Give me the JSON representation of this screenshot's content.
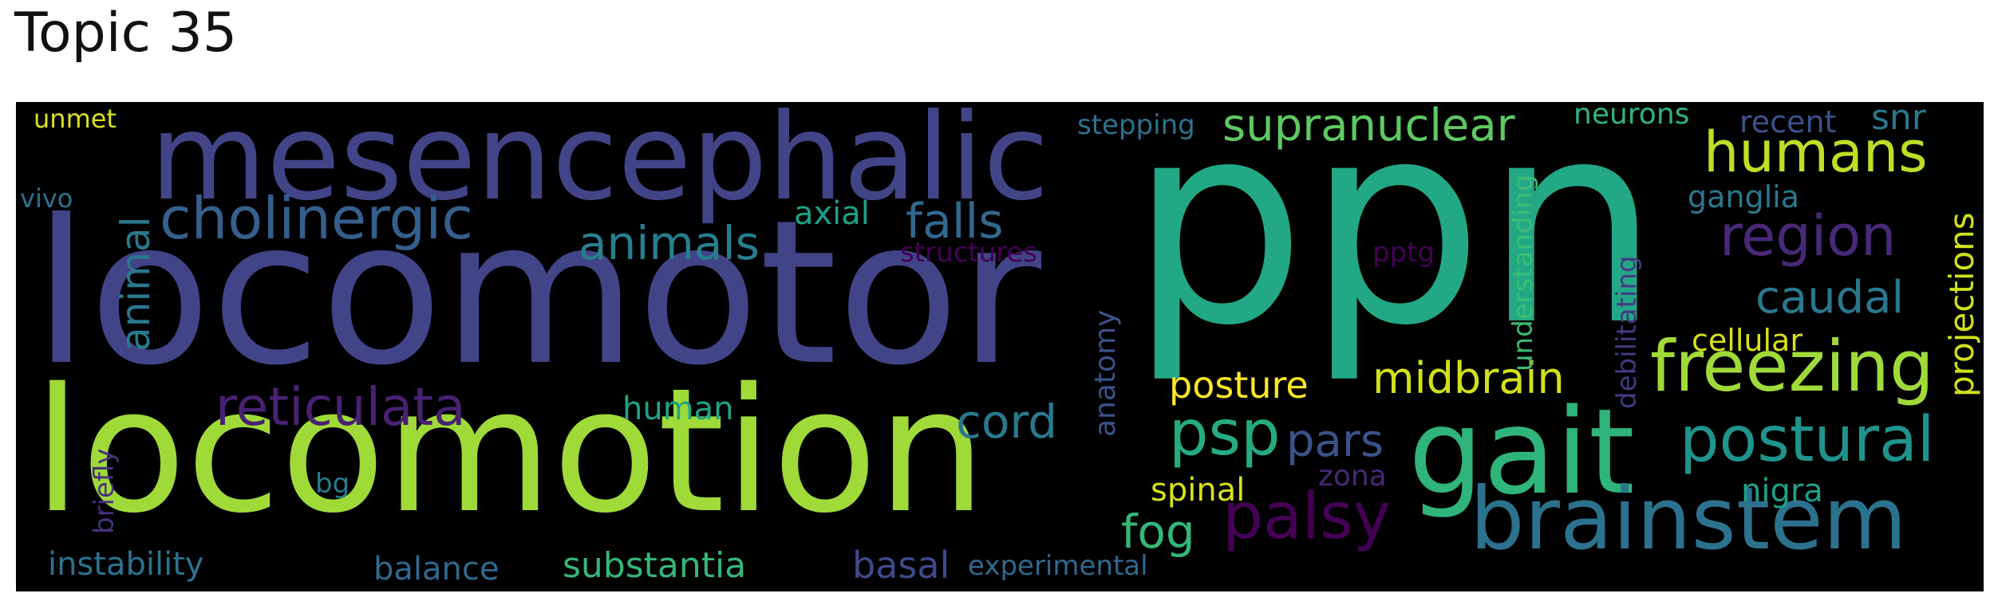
{
  "title": "Topic 35",
  "words": [
    {
      "text": "ppn",
      "color": "#22a884"
    },
    {
      "text": "locomotor",
      "color": "#414487"
    },
    {
      "text": "locomotion",
      "color": "#a0da39"
    },
    {
      "text": "mesencephalic",
      "color": "#414487"
    },
    {
      "text": "gait",
      "color": "#2fb47c"
    },
    {
      "text": "brainstem",
      "color": "#2c728e"
    },
    {
      "text": "freezing",
      "color": "#a0da39"
    },
    {
      "text": "postural",
      "color": "#1f948c"
    },
    {
      "text": "cholinergic",
      "color": "#355f8d"
    },
    {
      "text": "humans",
      "color": "#bddf26"
    },
    {
      "text": "supranuclear",
      "color": "#5ec962"
    },
    {
      "text": "region",
      "color": "#482878"
    },
    {
      "text": "reticulata",
      "color": "#482173"
    },
    {
      "text": "palsy",
      "color": "#440154"
    },
    {
      "text": "psp",
      "color": "#25ab82"
    },
    {
      "text": "midbrain",
      "color": "#d0e11c"
    },
    {
      "text": "animals",
      "color": "#277f8e"
    },
    {
      "text": "falls",
      "color": "#31688e"
    },
    {
      "text": "cord",
      "color": "#2a788e"
    },
    {
      "text": "fog",
      "color": "#35b779"
    },
    {
      "text": "pars",
      "color": "#3b528b"
    },
    {
      "text": "caudal",
      "color": "#2a788e"
    },
    {
      "text": "animal",
      "color": "#2a788e"
    },
    {
      "text": "projections",
      "color": "#d0e11c"
    },
    {
      "text": "posture",
      "color": "#fde725"
    },
    {
      "text": "substantia",
      "color": "#35b779"
    },
    {
      "text": "basal",
      "color": "#3e4a89"
    },
    {
      "text": "instability",
      "color": "#2c728e"
    },
    {
      "text": "balance",
      "color": "#31688e"
    },
    {
      "text": "human",
      "color": "#20a386"
    },
    {
      "text": "anatomy",
      "color": "#3b528b"
    },
    {
      "text": "axial",
      "color": "#1fa088"
    },
    {
      "text": "spinal",
      "color": "#d8e219"
    },
    {
      "text": "nigra",
      "color": "#1fa088"
    },
    {
      "text": "ganglia",
      "color": "#2a788e"
    },
    {
      "text": "cellular",
      "color": "#d8e219"
    },
    {
      "text": "snr",
      "color": "#2a788e"
    },
    {
      "text": "recent",
      "color": "#3b528b"
    },
    {
      "text": "neurons",
      "color": "#2fb47c"
    },
    {
      "text": "stepping",
      "color": "#2c728e"
    },
    {
      "text": "structures",
      "color": "#440154"
    },
    {
      "text": "pptg",
      "color": "#440154"
    },
    {
      "text": "zona",
      "color": "#482878"
    },
    {
      "text": "understanding",
      "color": "#3dbc74"
    },
    {
      "text": "debilitating",
      "color": "#443983"
    },
    {
      "text": "briefly",
      "color": "#46327e"
    },
    {
      "text": "experimental",
      "color": "#31688e"
    },
    {
      "text": "bg",
      "color": "#287c8e"
    },
    {
      "text": "vivo",
      "color": "#2c728e"
    },
    {
      "text": "unmet",
      "color": "#d8e219"
    }
  ]
}
